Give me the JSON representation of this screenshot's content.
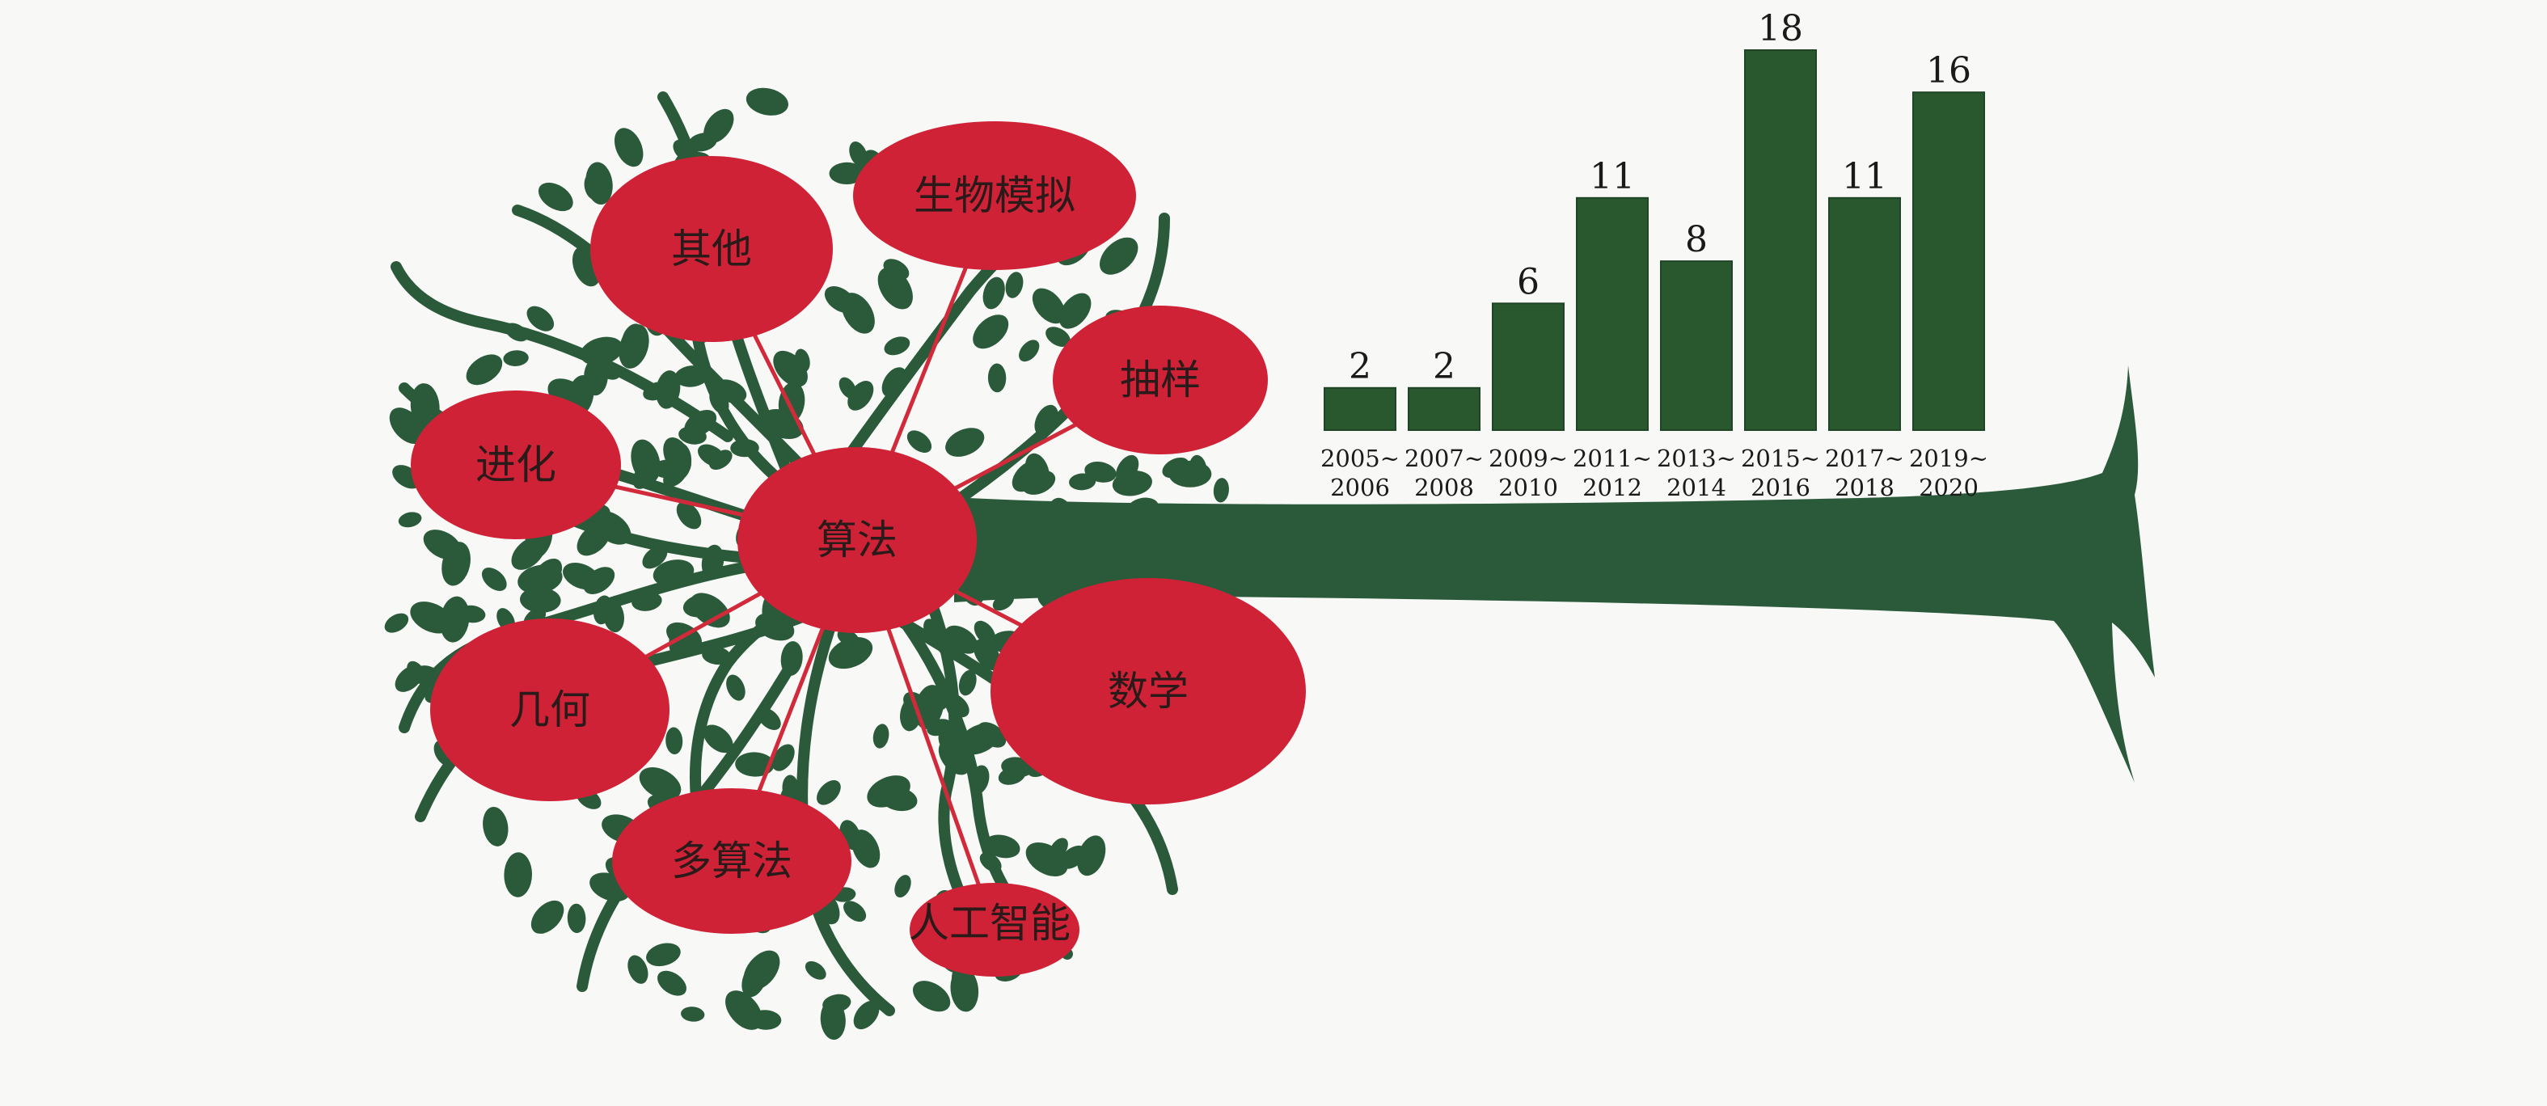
{
  "colors": {
    "tree": "#2b5a3a",
    "bar": "#29582f",
    "node": "#cf2236",
    "link": "#d12a3a",
    "background": "#f8f8f7"
  },
  "concept_map": {
    "center": "算法",
    "nodes": [
      "生物模拟",
      "其他",
      "抽样",
      "进化",
      "数学",
      "几何",
      "多算法",
      "人工智能"
    ]
  },
  "chart_data": {
    "type": "bar",
    "categories": [
      [
        "2005~",
        "2006"
      ],
      [
        "2007~",
        "2008"
      ],
      [
        "2009~",
        "2010"
      ],
      [
        "2011~",
        "2012"
      ],
      [
        "2013~",
        "2014"
      ],
      [
        "2015~",
        "2016"
      ],
      [
        "2017~",
        "2018"
      ],
      [
        "2019~",
        "2020"
      ]
    ],
    "values": [
      2,
      2,
      6,
      11,
      8,
      18,
      11,
      16
    ],
    "title": "",
    "xlabel": "",
    "ylabel": "",
    "ylim": [
      0,
      18
    ],
    "grid": false,
    "legend": "none",
    "data_labels": true
  }
}
